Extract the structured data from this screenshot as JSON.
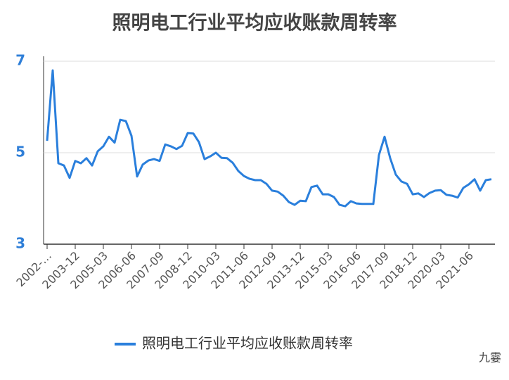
{
  "chart_data": {
    "type": "line",
    "title": "照明电工行业平均应收账款周转率",
    "categories": [
      "2002-…",
      null,
      null,
      null,
      null,
      "2003-12",
      null,
      null,
      null,
      null,
      "2005-03",
      null,
      null,
      null,
      null,
      "2006-06",
      null,
      null,
      null,
      null,
      "2007-09",
      null,
      null,
      null,
      null,
      "2008-12",
      null,
      null,
      null,
      null,
      "2010-03",
      null,
      null,
      null,
      null,
      "2011-06",
      null,
      null,
      null,
      null,
      "2012-09",
      null,
      null,
      null,
      null,
      "2013-12",
      null,
      null,
      null,
      null,
      "2015-03",
      null,
      null,
      null,
      null,
      "2016-06",
      null,
      null,
      null,
      null,
      "2017-09",
      null,
      null,
      null,
      null,
      "2018-12",
      null,
      null,
      null,
      null,
      "2020-03",
      null,
      null,
      null,
      null,
      "2021-06",
      null,
      null,
      null,
      null
    ],
    "series": [
      {
        "name": "照明电工行业平均应收账款周转率",
        "color": "#2a7fdc",
        "values": [
          5.26,
          6.8,
          4.77,
          4.72,
          4.45,
          4.82,
          4.77,
          4.88,
          4.72,
          5.03,
          5.14,
          5.35,
          5.22,
          5.72,
          5.69,
          5.37,
          4.48,
          4.74,
          4.83,
          4.86,
          4.82,
          5.18,
          5.14,
          5.08,
          5.15,
          5.43,
          5.42,
          5.23,
          4.86,
          4.92,
          5.0,
          4.89,
          4.88,
          4.78,
          4.6,
          4.49,
          4.43,
          4.4,
          4.4,
          4.32,
          4.17,
          4.15,
          4.06,
          3.92,
          3.86,
          3.95,
          3.94,
          4.25,
          4.28,
          4.09,
          4.09,
          4.03,
          3.86,
          3.83,
          3.94,
          3.89,
          3.88,
          3.88,
          3.88,
          4.95,
          5.35,
          4.88,
          4.52,
          4.37,
          4.32,
          4.09,
          4.11,
          4.03,
          4.12,
          4.17,
          4.18,
          4.08,
          4.06,
          4.02,
          4.23,
          4.31,
          4.42,
          4.17,
          4.4,
          4.42
        ]
      }
    ],
    "ylim": [
      3,
      7
    ],
    "yticks": [
      3,
      5,
      7
    ],
    "grid": true,
    "legend": "bottom",
    "watermark": "九霎"
  }
}
